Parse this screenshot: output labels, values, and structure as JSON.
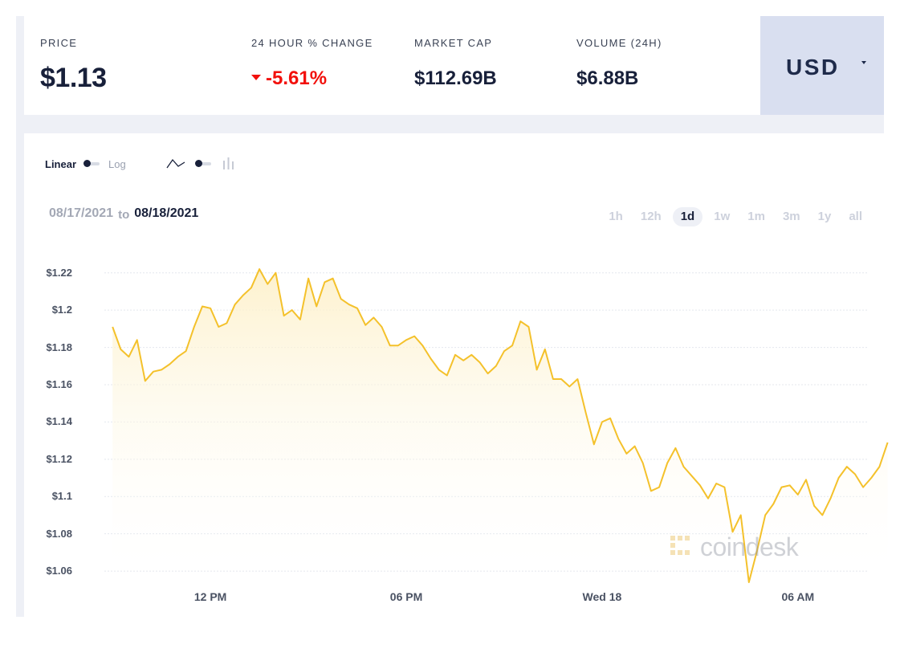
{
  "stats": {
    "price_label": "PRICE",
    "price_value": "$1.13",
    "change_label": "24 HOUR % CHANGE",
    "change_value": "-5.61%",
    "mcap_label": "MARKET CAP",
    "mcap_value": "$112.69B",
    "volume_label": "VOLUME (24H)",
    "volume_value": "$6.88B"
  },
  "currency": {
    "label": "USD"
  },
  "controls": {
    "scale_linear": "Linear",
    "scale_log": "Log",
    "date_from": "08/17/2021",
    "date_to_word": "to",
    "date_to": "08/18/2021",
    "ranges": [
      "1h",
      "12h",
      "1d",
      "1w",
      "1m",
      "3m",
      "1y",
      "all"
    ],
    "active_range": "1d"
  },
  "watermark": {
    "text": "coindesk"
  },
  "colors": {
    "line": "#f4c12b",
    "fill_top": "#fdf0c8",
    "negative": "#f2100c",
    "text_dark": "#18203a",
    "currency_bg": "#d9dff0"
  },
  "chart_data": {
    "type": "area",
    "x_tick_labels": [
      "12 PM",
      "06 PM",
      "Wed 18",
      "06 AM"
    ],
    "x_tick_positions": [
      3,
      9,
      15,
      21
    ],
    "x_range": [
      -0.25,
      23.12
    ],
    "y_tick_labels": [
      "$1.22",
      "$1.2",
      "$1.18",
      "$1.16",
      "$1.14",
      "$1.12",
      "$1.1",
      "$1.08",
      "$1.06"
    ],
    "y_tick_values": [
      1.22,
      1.2,
      1.18,
      1.16,
      1.14,
      1.12,
      1.1,
      1.08,
      1.06
    ],
    "ylim": [
      1.054,
      1.2285
    ],
    "grid": true,
    "series": [
      {
        "x_step_hours": 0.25,
        "values": [
          1.191,
          1.179,
          1.175,
          1.184,
          1.162,
          1.167,
          1.168,
          1.171,
          1.175,
          1.178,
          1.191,
          1.202,
          1.201,
          1.191,
          1.193,
          1.203,
          1.208,
          1.212,
          1.222,
          1.214,
          1.22,
          1.197,
          1.2,
          1.195,
          1.217,
          1.202,
          1.215,
          1.217,
          1.206,
          1.203,
          1.201,
          1.192,
          1.196,
          1.191,
          1.181,
          1.181,
          1.184,
          1.186,
          1.181,
          1.174,
          1.168,
          1.165,
          1.176,
          1.173,
          1.176,
          1.172,
          1.166,
          1.17,
          1.178,
          1.181,
          1.194,
          1.191,
          1.168,
          1.179,
          1.163,
          1.163,
          1.159,
          1.163,
          1.145,
          1.128,
          1.14,
          1.142,
          1.131,
          1.123,
          1.127,
          1.118,
          1.103,
          1.105,
          1.118,
          1.126,
          1.116,
          1.111,
          1.106,
          1.099,
          1.107,
          1.105,
          1.081,
          1.09,
          1.054,
          1.071,
          1.09,
          1.096,
          1.105,
          1.106,
          1.101,
          1.109,
          1.095,
          1.09,
          1.099,
          1.11,
          1.116,
          1.112,
          1.105,
          1.11,
          1.116,
          1.129
        ]
      }
    ]
  }
}
